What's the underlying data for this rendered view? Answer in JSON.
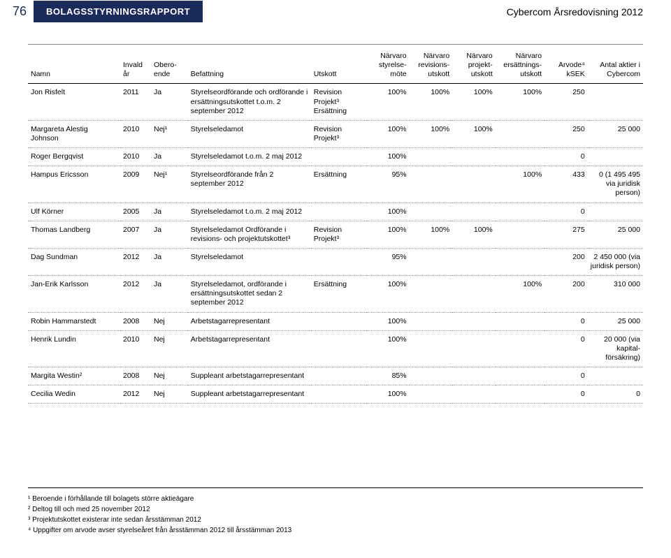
{
  "header": {
    "page_number": "76",
    "section_title": "BOLAGSSTYRNINGSRAPPORT",
    "doc_title": "Cybercom Årsredovisning 2012"
  },
  "columns": [
    "Namn",
    "Invald år",
    "Obero­ende",
    "Befattning",
    "Utskott",
    "Närvaro styrelse­möte",
    "Närvaro revisions­utskott",
    "Närvaro projekt­utskott",
    "Närvaro ersättnings­utskott",
    "Arvode⁴ kSEK",
    "Antal aktier i Cybercom"
  ],
  "rows": [
    {
      "name": "Jon Risfelt",
      "year": "2011",
      "indep": "Ja",
      "role": "Styrelseordförande och ordförande i ersättnings­utskottet t.o.m. 2 september 2012",
      "utskott": "Revision Projekt³ Ersättning",
      "styrelse": "100%",
      "revision": "100%",
      "projekt": "100%",
      "ersattning": "100%",
      "arvode": "250",
      "aktier": ""
    },
    {
      "name": "Margareta Alestig Johnson",
      "year": "2010",
      "indep": "Nej¹",
      "role": "Styrelseledamot",
      "utskott": "Revision Projekt³",
      "styrelse": "100%",
      "revision": "100%",
      "projekt": "100%",
      "ersattning": "",
      "arvode": "250",
      "aktier": "25 000"
    },
    {
      "name": "Roger Bergqvist",
      "year": "2010",
      "indep": "Ja",
      "role": "Styrelseledamot t.o.m. 2 maj 2012",
      "utskott": "",
      "styrelse": "100%",
      "revision": "",
      "projekt": "",
      "ersattning": "",
      "arvode": "0",
      "aktier": ""
    },
    {
      "name": "Hampus Ericsson",
      "year": "2009",
      "indep": "Nej¹",
      "role": "Styrelseordförande från 2 september 2012",
      "utskott": "Ersättning",
      "styrelse": "95%",
      "revision": "",
      "projekt": "",
      "ersattning": "100%",
      "arvode": "433",
      "aktier": "0 (1 495 495 via juridisk person)"
    },
    {
      "name": "Ulf Körner",
      "year": "2005",
      "indep": "Ja",
      "role": "Styrelseledamot t.o.m. 2 maj 2012",
      "utskott": "",
      "styrelse": "100%",
      "revision": "",
      "projekt": "",
      "ersattning": "",
      "arvode": "0",
      "aktier": ""
    },
    {
      "name": "Thomas Landberg",
      "year": "2007",
      "indep": "Ja",
      "role": "Styrelseledamot Ordförande i revisions- och projektutskottet³",
      "utskott": "Revision Projekt³",
      "styrelse": "100%",
      "revision": "100%",
      "projekt": "100%",
      "ersattning": "",
      "arvode": "275",
      "aktier": "25 000"
    },
    {
      "name": "Dag Sundman",
      "year": "2012",
      "indep": "Ja",
      "role": "Styrelseledamot",
      "utskott": "",
      "styrelse": "95%",
      "revision": "",
      "projekt": "",
      "ersattning": "",
      "arvode": "200",
      "aktier": "2 450 000 (via juridisk person)"
    },
    {
      "name": "Jan-Erik Karlsson",
      "year": "2012",
      "indep": "Ja",
      "role": "Styrelseledamot, ordfö­rande i ersättningsutskottet sedan 2 september 2012",
      "utskott": "Ersättning",
      "styrelse": "100%",
      "revision": "",
      "projekt": "",
      "ersattning": "100%",
      "arvode": "200",
      "aktier": "310 000"
    },
    {
      "name": "Robin Hammarstedt",
      "year": "2008",
      "indep": "Nej",
      "role": "Arbetstagarrepresentant",
      "utskott": "",
      "styrelse": "100%",
      "revision": "",
      "projekt": "",
      "ersattning": "",
      "arvode": "0",
      "aktier": "25 000"
    },
    {
      "name": "Henrik Lundin",
      "year": "2010",
      "indep": "Nej",
      "role": "Arbetstagarrepresentant",
      "utskott": "",
      "styrelse": "100%",
      "revision": "",
      "projekt": "",
      "ersattning": "",
      "arvode": "0",
      "aktier": "20 000 (via kapital­försäkring)"
    },
    {
      "name": "Margita Westin²",
      "year": "2008",
      "indep": "Nej",
      "role": "Suppleant arbetstagar­representant",
      "utskott": "",
      "styrelse": "85%",
      "revision": "",
      "projekt": "",
      "ersattning": "",
      "arvode": "0",
      "aktier": ""
    },
    {
      "name": "Cecilia Wedin",
      "year": "2012",
      "indep": "Nej",
      "role": "Suppleant arbetstagar­representant",
      "utskott": "",
      "styrelse": "100%",
      "revision": "",
      "projekt": "",
      "ersattning": "",
      "arvode": "0",
      "aktier": "0"
    }
  ],
  "footnotes": [
    "¹ Beroende i förhållande till bolagets större aktieägare",
    "² Deltog till och med 25 november 2012",
    "³ Projektutskottet existerar inte sedan årsstämman 2012",
    "⁴ Uppgifter om arvode avser styrelseåret från årsstämman 2012 till årsstämman 2013"
  ],
  "style": {
    "header_bg": "#1a2a5a",
    "header_fg": "#ffffff",
    "page_color": "#1a2a5a",
    "rule_color": "#888888",
    "dotted_color": "#999999",
    "body_font_size": 10.5,
    "col_widths_pct": [
      15,
      5,
      6,
      20,
      9,
      7,
      7,
      7,
      8,
      7,
      9
    ]
  }
}
